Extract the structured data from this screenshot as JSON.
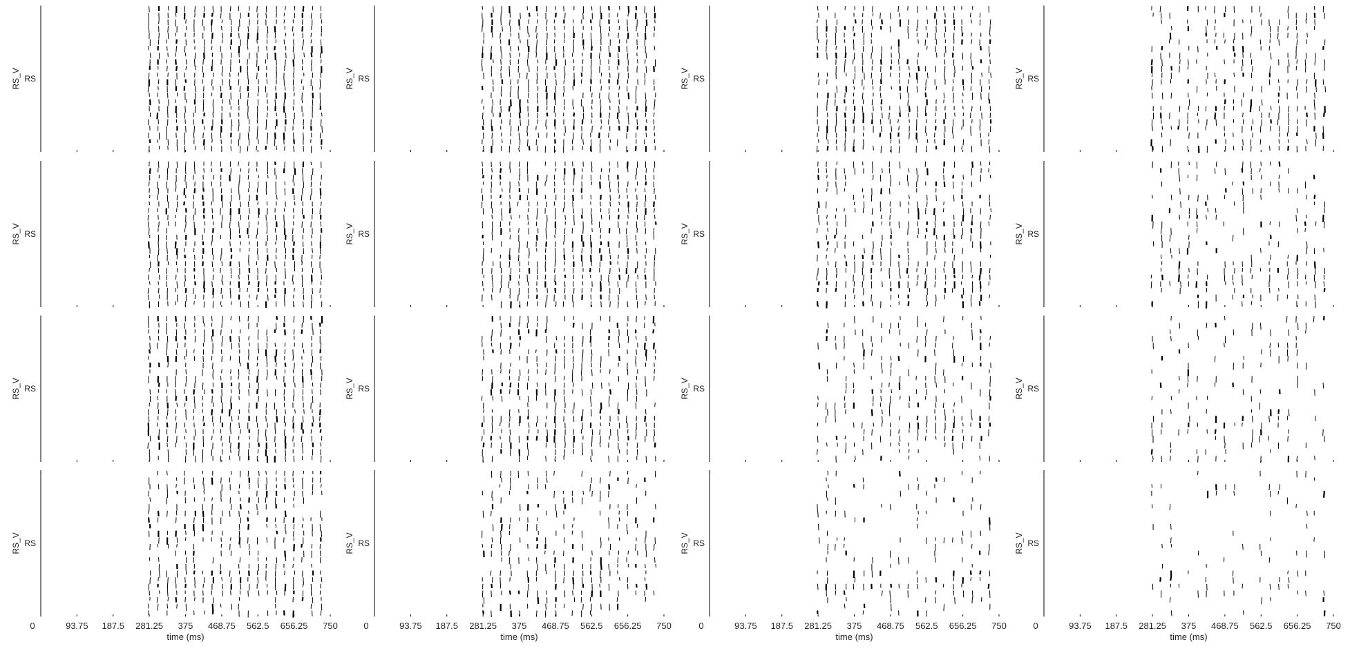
{
  "figure": {
    "layout": {
      "rows": 4,
      "cols": 4
    },
    "colors": {
      "trace": "#000000",
      "axis": "#000000",
      "text": "#222222",
      "background": "#ffffff"
    }
  },
  "chart_data": {
    "type": "raster",
    "xlabel": "time (ms)",
    "xlim": [
      0,
      750
    ],
    "x_ticks": [
      0,
      93.75,
      187.5,
      281.25,
      375,
      468.75,
      562.5,
      656.25,
      750
    ],
    "x_tick_labels": [
      "0",
      "93.75",
      "187.5",
      "281.25",
      "375",
      "468.75",
      "562.5",
      "656.25",
      "750"
    ],
    "ylabel": "RS_V",
    "y_tick_label": "RS",
    "grid": false,
    "panels_note": "4x4 grid of raster panels; spiking becomes sparser toward lower rows and right columns",
    "sparsity_by_panel": [
      [
        0.0,
        0.05,
        0.18,
        0.42
      ],
      [
        0.04,
        0.12,
        0.34,
        0.55
      ],
      [
        0.1,
        0.3,
        0.55,
        0.72
      ],
      [
        0.28,
        0.48,
        0.7,
        0.82
      ]
    ],
    "activity_onset_ms": 281.25,
    "activity_end_ms": 750,
    "burst_period_ms": 23.4
  }
}
